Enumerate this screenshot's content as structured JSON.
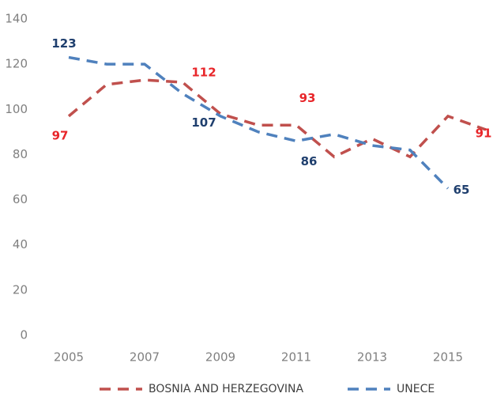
{
  "chart_data": {
    "type": "line",
    "x": [
      2005,
      2006,
      2007,
      2008,
      2009,
      2010,
      2011,
      2012,
      2013,
      2014,
      2015,
      2016
    ],
    "xlim": [
      2005,
      2016
    ],
    "xticks": [
      2005,
      2007,
      2009,
      2011,
      2013,
      2015
    ],
    "ylim": [
      0,
      140
    ],
    "yticks": [
      0,
      20,
      40,
      60,
      80,
      100,
      120,
      140
    ],
    "grid": false,
    "legend": "bottom",
    "series": [
      {
        "name": "BOSNIA AND HERZEGOVINA",
        "color": "#c0504d",
        "label_color": "#e8262a",
        "dashed": true,
        "values": [
          97,
          111,
          113,
          112,
          98,
          93,
          93,
          79,
          87,
          79,
          97,
          91
        ],
        "value_labels": [
          97,
          null,
          null,
          112,
          null,
          null,
          93,
          null,
          null,
          null,
          null,
          91
        ]
      },
      {
        "name": "UNECE",
        "color": "#4f81bd",
        "label_color": "#1f3f6e",
        "dashed": true,
        "values": [
          123,
          120,
          120,
          107,
          97,
          90,
          86,
          89,
          84,
          82,
          65,
          null
        ],
        "value_labels": [
          123,
          null,
          null,
          107,
          null,
          null,
          86,
          null,
          null,
          null,
          65,
          null
        ]
      }
    ]
  }
}
